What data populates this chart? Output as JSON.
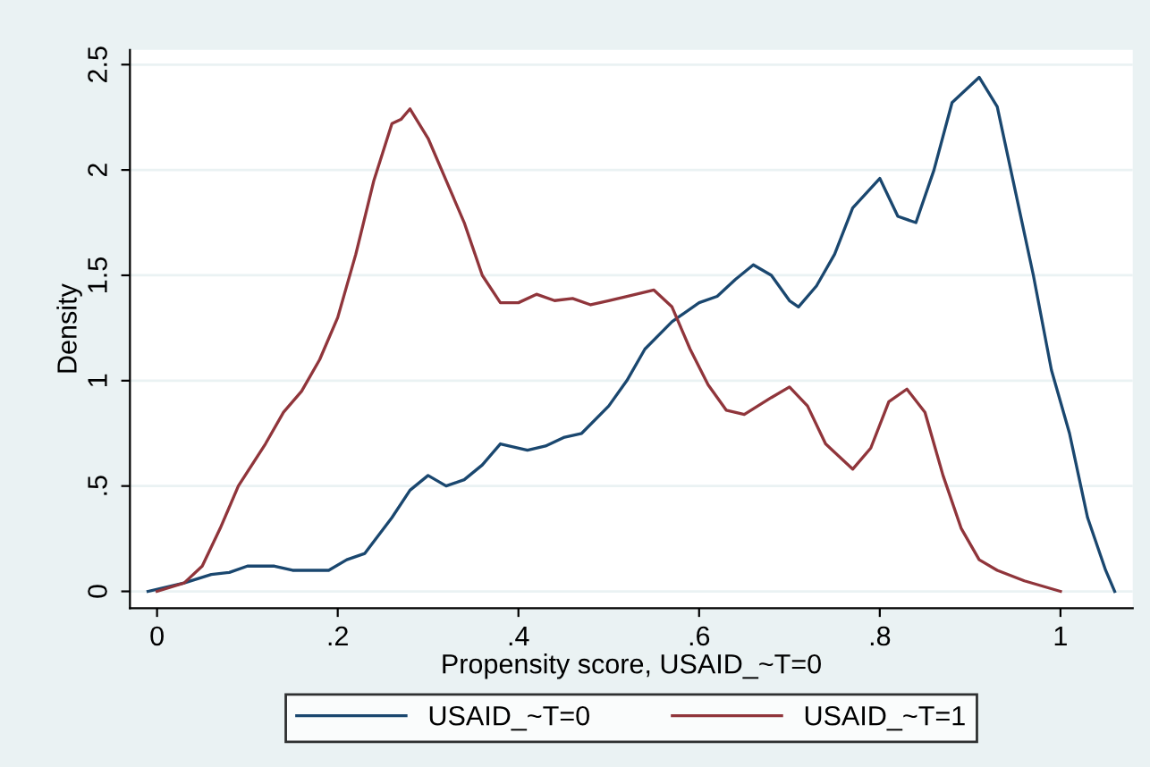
{
  "chart_data": {
    "type": "line",
    "xlabel": "Propensity score, USAID_~T=0",
    "ylabel": "Density",
    "xlim": [
      -0.03,
      1.08
    ],
    "ylim": [
      -0.08,
      2.57
    ],
    "xticks": [
      {
        "value": 0,
        "label": "0"
      },
      {
        "value": 0.2,
        "label": ".2"
      },
      {
        "value": 0.4,
        "label": ".4"
      },
      {
        "value": 0.6,
        "label": ".6"
      },
      {
        "value": 0.8,
        "label": ".8"
      },
      {
        "value": 1,
        "label": "1"
      }
    ],
    "yticks": [
      {
        "value": 0,
        "label": "0"
      },
      {
        "value": 0.5,
        "label": ".5"
      },
      {
        "value": 1,
        "label": "1"
      },
      {
        "value": 1.5,
        "label": "1.5"
      },
      {
        "value": 2,
        "label": "2"
      },
      {
        "value": 2.5,
        "label": "2.5"
      }
    ],
    "grid": "y",
    "legend": "bottom",
    "series": [
      {
        "name": "USAID_~T=0",
        "color": "#1a476f",
        "x": [
          -0.01,
          0.03,
          0.06,
          0.08,
          0.1,
          0.13,
          0.15,
          0.19,
          0.21,
          0.23,
          0.26,
          0.28,
          0.3,
          0.32,
          0.34,
          0.36,
          0.38,
          0.41,
          0.43,
          0.45,
          0.47,
          0.5,
          0.52,
          0.54,
          0.57,
          0.6,
          0.62,
          0.64,
          0.66,
          0.68,
          0.7,
          0.71,
          0.73,
          0.75,
          0.77,
          0.8,
          0.82,
          0.84,
          0.86,
          0.88,
          0.91,
          0.93,
          0.95,
          0.97,
          0.99,
          1.01,
          1.03,
          1.05,
          1.06
        ],
        "values": [
          0,
          0.04,
          0.08,
          0.09,
          0.12,
          0.12,
          0.1,
          0.1,
          0.15,
          0.18,
          0.35,
          0.48,
          0.55,
          0.5,
          0.53,
          0.6,
          0.7,
          0.67,
          0.69,
          0.73,
          0.75,
          0.88,
          1.0,
          1.15,
          1.28,
          1.37,
          1.4,
          1.48,
          1.55,
          1.5,
          1.38,
          1.35,
          1.45,
          1.6,
          1.82,
          1.96,
          1.78,
          1.75,
          2.0,
          2.32,
          2.44,
          2.3,
          1.9,
          1.5,
          1.05,
          0.75,
          0.35,
          0.1,
          0
        ]
      },
      {
        "name": "USAID_~T=1",
        "color": "#90353b",
        "x": [
          0.0,
          0.03,
          0.05,
          0.07,
          0.09,
          0.12,
          0.14,
          0.16,
          0.18,
          0.2,
          0.22,
          0.24,
          0.26,
          0.27,
          0.28,
          0.3,
          0.32,
          0.34,
          0.36,
          0.38,
          0.4,
          0.42,
          0.44,
          0.46,
          0.48,
          0.5,
          0.52,
          0.55,
          0.57,
          0.59,
          0.61,
          0.63,
          0.65,
          0.68,
          0.7,
          0.72,
          0.74,
          0.77,
          0.79,
          0.81,
          0.83,
          0.85,
          0.87,
          0.89,
          0.91,
          0.93,
          0.96,
          1.0
        ],
        "values": [
          0,
          0.04,
          0.12,
          0.3,
          0.5,
          0.7,
          0.85,
          0.95,
          1.1,
          1.3,
          1.6,
          1.95,
          2.22,
          2.24,
          2.29,
          2.15,
          1.95,
          1.75,
          1.5,
          1.37,
          1.37,
          1.41,
          1.38,
          1.39,
          1.36,
          1.38,
          1.4,
          1.43,
          1.35,
          1.15,
          0.98,
          0.86,
          0.84,
          0.92,
          0.97,
          0.88,
          0.7,
          0.58,
          0.68,
          0.9,
          0.96,
          0.85,
          0.55,
          0.3,
          0.15,
          0.1,
          0.05,
          0.0
        ]
      }
    ]
  }
}
